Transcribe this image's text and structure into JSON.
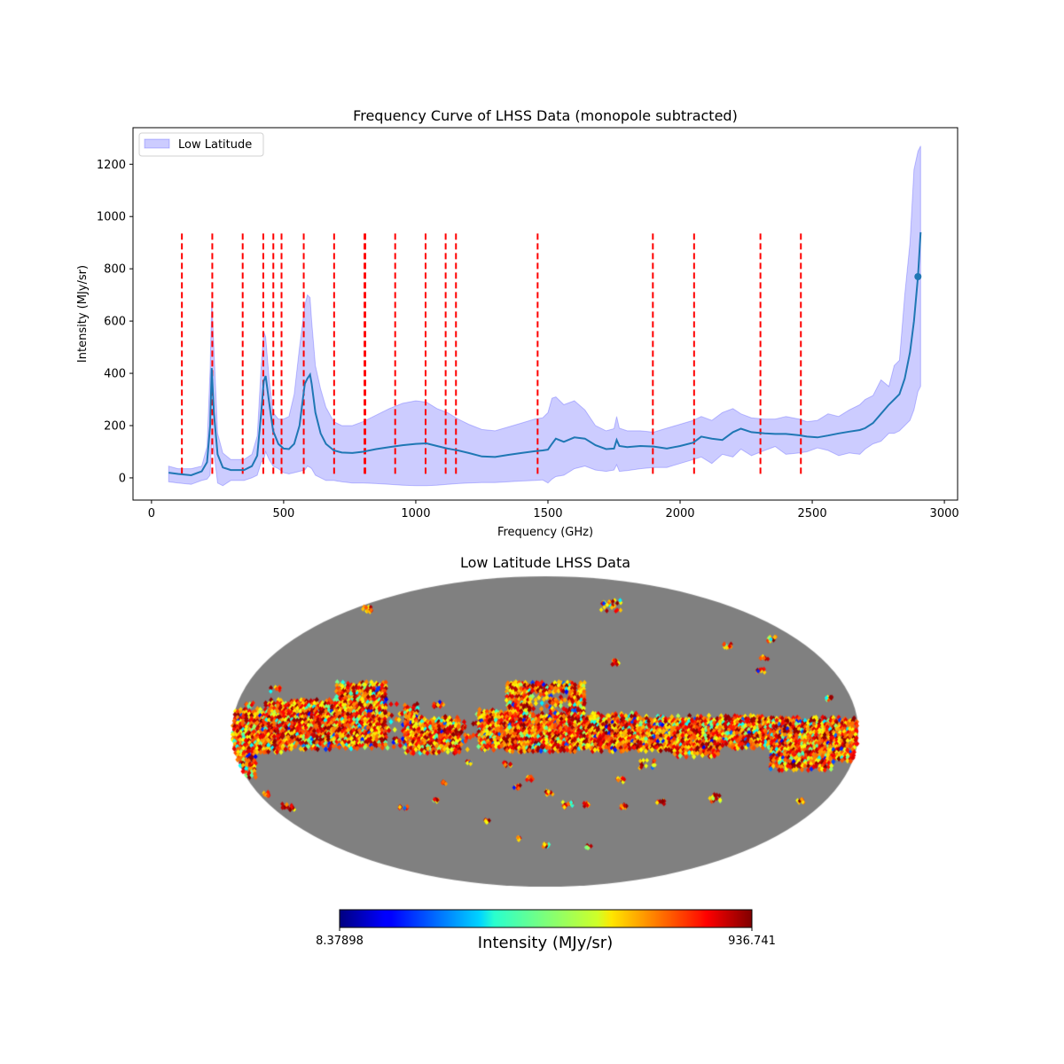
{
  "chart_data": [
    {
      "type": "line",
      "title": "Frequency Curve of LHSS Data (monopole subtracted)",
      "xlabel": "Frequency (GHz)",
      "ylabel": "Intensity (MJy/sr)",
      "xlim": [
        -70,
        3050
      ],
      "ylim": [
        -85,
        1340
      ],
      "xticks": [
        0,
        500,
        1000,
        1500,
        2000,
        2500,
        3000
      ],
      "xtick_labels": [
        "0",
        "500",
        "1000",
        "1500",
        "2000",
        "2500",
        "3000"
      ],
      "yticks": [
        0,
        200,
        400,
        600,
        800,
        1000,
        1200
      ],
      "ytick_labels": [
        "0",
        "200",
        "400",
        "600",
        "800",
        "1000",
        "1200"
      ],
      "grid": false,
      "legend": {
        "placement": "top-left",
        "entries": [
          {
            "label": "Low Latitude",
            "kind": "band",
            "color": "#0000ff",
            "alpha": 0.2
          }
        ]
      },
      "series": [
        {
          "name": "mean",
          "color": "#1f77b4",
          "x": [
            65,
            100,
            150,
            190,
            210,
            222,
            228,
            236,
            250,
            270,
            300,
            350,
            380,
            400,
            415,
            425,
            432,
            445,
            460,
            480,
            500,
            520,
            540,
            560,
            580,
            590,
            600,
            606,
            620,
            640,
            660,
            690,
            720,
            760,
            800,
            850,
            900,
            950,
            1000,
            1040,
            1080,
            1120,
            1160,
            1200,
            1250,
            1300,
            1350,
            1400,
            1450,
            1480,
            1500,
            1515,
            1530,
            1560,
            1600,
            1640,
            1680,
            1720,
            1750,
            1760,
            1770,
            1800,
            1850,
            1900,
            1950,
            2000,
            2050,
            2080,
            2120,
            2160,
            2200,
            2230,
            2270,
            2320,
            2360,
            2400,
            2450,
            2480,
            2520,
            2560,
            2600,
            2640,
            2680,
            2700,
            2730,
            2760,
            2790,
            2810,
            2830,
            2850,
            2870,
            2885,
            2900,
            2910
          ],
          "y": [
            20,
            15,
            10,
            25,
            60,
            200,
            420,
            250,
            90,
            40,
            30,
            30,
            45,
            85,
            250,
            370,
            390,
            290,
            180,
            130,
            112,
            110,
            130,
            200,
            360,
            380,
            395,
            360,
            250,
            170,
            130,
            105,
            97,
            95,
            100,
            110,
            118,
            125,
            130,
            132,
            122,
            112,
            105,
            95,
            82,
            80,
            88,
            95,
            102,
            105,
            108,
            130,
            150,
            138,
            155,
            150,
            125,
            110,
            112,
            145,
            122,
            118,
            122,
            120,
            112,
            122,
            135,
            158,
            150,
            145,
            175,
            188,
            175,
            170,
            168,
            168,
            163,
            158,
            155,
            162,
            170,
            177,
            183,
            190,
            210,
            245,
            280,
            300,
            320,
            380,
            480,
            600,
            770,
            940
          ]
        }
      ],
      "band": {
        "name": "Low Latitude",
        "color": "#0000ff",
        "alpha": 0.2,
        "x": [
          65,
          100,
          150,
          190,
          210,
          222,
          228,
          236,
          250,
          270,
          300,
          350,
          380,
          400,
          415,
          425,
          432,
          445,
          460,
          480,
          500,
          520,
          540,
          560,
          580,
          590,
          600,
          606,
          620,
          640,
          660,
          690,
          720,
          760,
          800,
          850,
          900,
          950,
          1000,
          1040,
          1080,
          1120,
          1160,
          1200,
          1250,
          1300,
          1350,
          1400,
          1450,
          1480,
          1500,
          1515,
          1530,
          1560,
          1600,
          1640,
          1680,
          1720,
          1750,
          1760,
          1770,
          1800,
          1850,
          1900,
          1950,
          2000,
          2050,
          2080,
          2120,
          2160,
          2200,
          2230,
          2270,
          2320,
          2360,
          2400,
          2450,
          2480,
          2520,
          2560,
          2600,
          2640,
          2680,
          2700,
          2730,
          2760,
          2790,
          2810,
          2830,
          2850,
          2870,
          2885,
          2900,
          2910
        ],
        "upper": [
          45,
          35,
          35,
          45,
          120,
          420,
          680,
          500,
          170,
          95,
          70,
          70,
          90,
          160,
          430,
          560,
          540,
          380,
          250,
          225,
          225,
          235,
          320,
          500,
          660,
          700,
          690,
          600,
          430,
          340,
          270,
          215,
          200,
          200,
          215,
          240,
          265,
          285,
          295,
          290,
          265,
          250,
          225,
          205,
          185,
          180,
          195,
          210,
          225,
          230,
          250,
          305,
          310,
          280,
          295,
          260,
          200,
          180,
          188,
          235,
          190,
          180,
          180,
          175,
          190,
          205,
          220,
          235,
          220,
          250,
          265,
          245,
          230,
          225,
          225,
          235,
          225,
          215,
          220,
          245,
          235,
          260,
          280,
          300,
          315,
          375,
          350,
          430,
          450,
          700,
          900,
          1180,
          1250,
          1270
        ],
        "lower": [
          -15,
          -20,
          -25,
          -10,
          -5,
          10,
          150,
          100,
          -20,
          -30,
          -10,
          -10,
          0,
          10,
          60,
          70,
          100,
          70,
          45,
          35,
          20,
          15,
          20,
          25,
          30,
          45,
          40,
          35,
          10,
          0,
          -10,
          -10,
          -15,
          -20,
          -20,
          -22,
          -25,
          -28,
          -30,
          -30,
          -28,
          -25,
          -22,
          -20,
          -18,
          -18,
          -15,
          -12,
          -10,
          -8,
          -20,
          -5,
          5,
          10,
          35,
          45,
          30,
          25,
          30,
          50,
          25,
          28,
          35,
          40,
          40,
          55,
          70,
          80,
          55,
          90,
          80,
          110,
          85,
          105,
          120,
          90,
          95,
          100,
          115,
          105,
          85,
          95,
          90,
          110,
          130,
          140,
          170,
          170,
          180,
          200,
          220,
          260,
          330,
          350
        ]
      },
      "markers": [
        {
          "x": 2900,
          "y": 770,
          "color": "#1f77b4"
        }
      ],
      "vlines": {
        "color": "#ff0000",
        "style": "dashed",
        "ymin": 10,
        "ymax": 935,
        "x": [
          115,
          230,
          345,
          423,
          461,
          492,
          576,
          691,
          806,
          809,
          922,
          1037,
          1113,
          1152,
          1461,
          1897,
          2053,
          2304,
          2457
        ]
      }
    },
    {
      "type": "heatmap",
      "title": "Low Latitude LHSS Data",
      "projection": "mollweide",
      "colormap": "jet",
      "bad_color": "#808080",
      "colorbar": {
        "label": "Intensity (MJy/sr)",
        "min": 8.37898,
        "max": 936.741,
        "min_label": "8.37898",
        "max_label": "936.741",
        "orientation": "horizontal"
      }
    }
  ]
}
